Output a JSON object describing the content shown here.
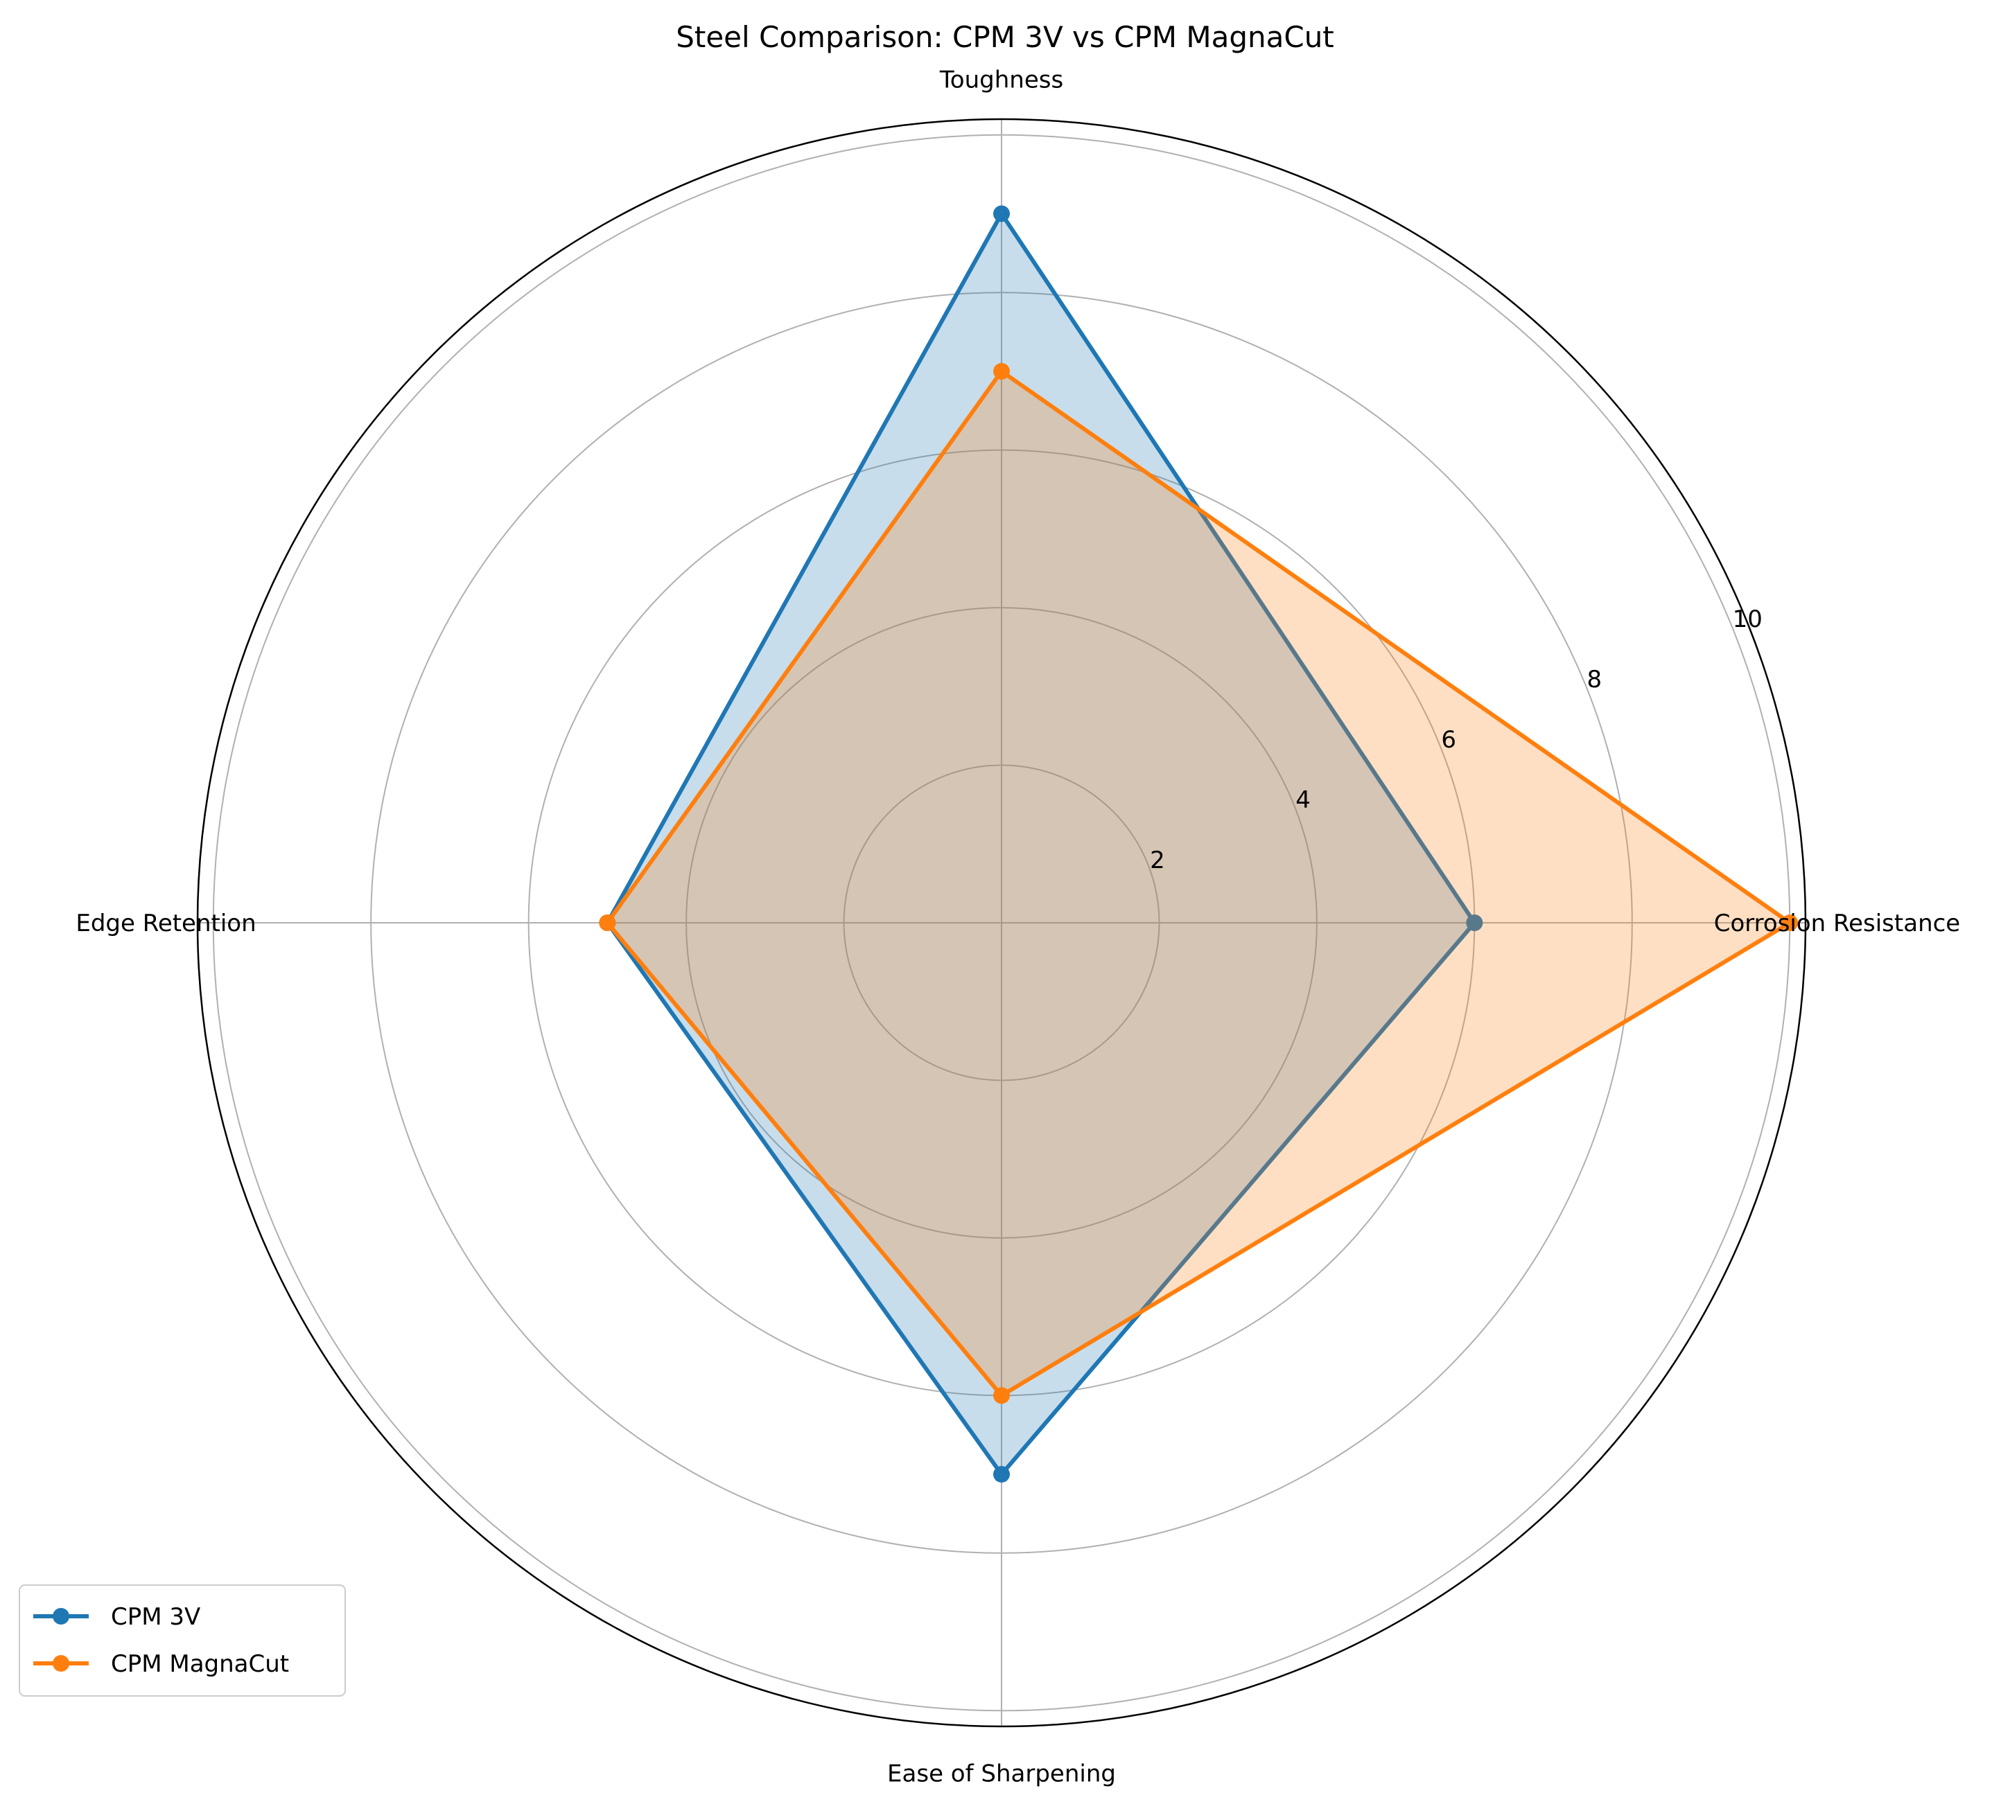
{
  "chart_data": {
    "type": "radar",
    "title": "Steel Comparison: CPM 3V vs CPM MagnaCut",
    "axes": [
      "Corrosion Resistance",
      "Toughness",
      "Edge Retention",
      "Ease of Sharpening"
    ],
    "rlim": [
      0,
      10.2
    ],
    "rticks": [
      2,
      4,
      6,
      8,
      10
    ],
    "rtick_labels": [
      "2",
      "4",
      "6",
      "8",
      "10"
    ],
    "grid": true,
    "legend_position": "lower-left",
    "series": [
      {
        "name": "CPM 3V",
        "values": [
          6,
          9,
          5,
          7
        ],
        "color": "#1f77b4"
      },
      {
        "name": "CPM MagnaCut",
        "values": [
          10,
          7,
          5,
          6
        ],
        "color": "#ff7f0e"
      }
    ]
  }
}
